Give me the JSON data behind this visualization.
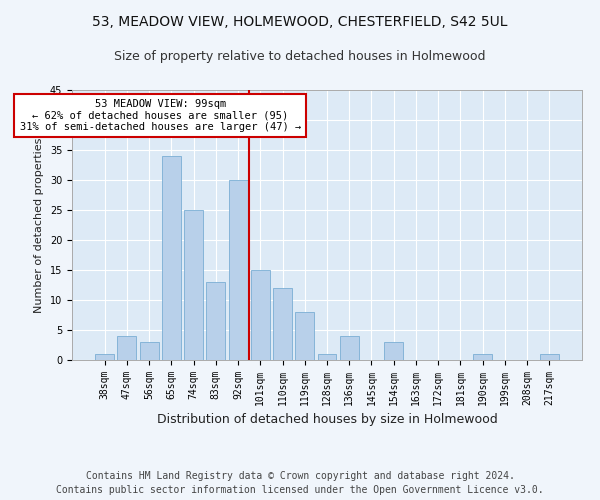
{
  "title1": "53, MEADOW VIEW, HOLMEWOOD, CHESTERFIELD, S42 5UL",
  "title2": "Size of property relative to detached houses in Holmewood",
  "xlabel": "Distribution of detached houses by size in Holmewood",
  "ylabel": "Number of detached properties",
  "categories": [
    "38sqm",
    "47sqm",
    "56sqm",
    "65sqm",
    "74sqm",
    "83sqm",
    "92sqm",
    "101sqm",
    "110sqm",
    "119sqm",
    "128sqm",
    "136sqm",
    "145sqm",
    "154sqm",
    "163sqm",
    "172sqm",
    "181sqm",
    "190sqm",
    "199sqm",
    "208sqm",
    "217sqm"
  ],
  "values": [
    1,
    4,
    3,
    34,
    25,
    13,
    30,
    15,
    12,
    8,
    1,
    4,
    0,
    3,
    0,
    0,
    0,
    1,
    0,
    0,
    1
  ],
  "bar_color": "#b8d0ea",
  "bar_edgecolor": "#7aaed4",
  "vline_color": "#cc0000",
  "vline_x": 6.5,
  "annotation_text": "53 MEADOW VIEW: 99sqm\n← 62% of detached houses are smaller (95)\n31% of semi-detached houses are larger (47) →",
  "annotation_box_edgecolor": "#cc0000",
  "annotation_box_facecolor": "#ffffff",
  "ylim": [
    0,
    45
  ],
  "yticks": [
    0,
    5,
    10,
    15,
    20,
    25,
    30,
    35,
    40,
    45
  ],
  "footer_line1": "Contains HM Land Registry data © Crown copyright and database right 2024.",
  "footer_line2": "Contains public sector information licensed under the Open Government Licence v3.0.",
  "bg_color": "#ddeaf6",
  "fig_bg_color": "#f0f5fb",
  "title1_fontsize": 10,
  "title2_fontsize": 9,
  "xlabel_fontsize": 9,
  "ylabel_fontsize": 8,
  "footer_fontsize": 7,
  "tick_fontsize": 7,
  "annotation_fontsize": 7.5
}
